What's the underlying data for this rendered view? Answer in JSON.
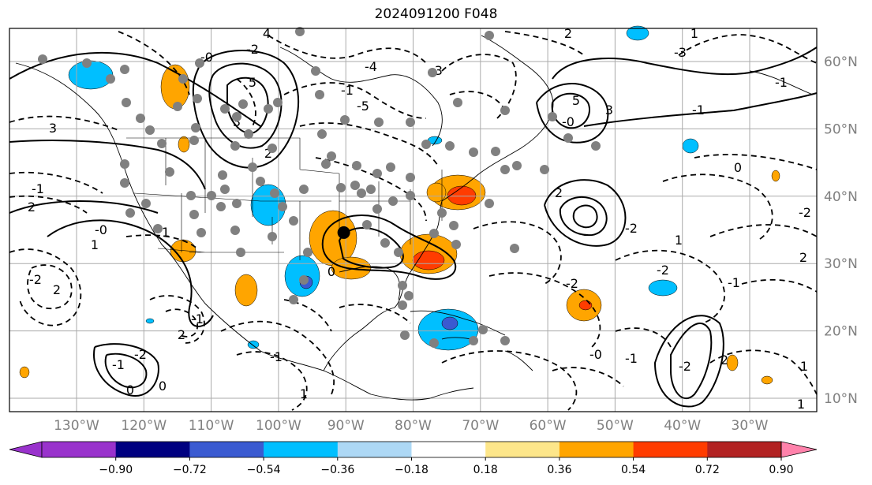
{
  "title": "2024091200 F048",
  "lat_labels": [
    "60°N",
    "50°N",
    "40°N",
    "30°N",
    "20°N",
    "10°N"
  ],
  "lon_labels": [
    "130°W",
    "120°W",
    "110°W",
    "100°W",
    "90°W",
    "80°W",
    "70°W",
    "60°W",
    "50°W",
    "40°W",
    "30°W"
  ],
  "colorbar": {
    "ticks": [
      "−0.90",
      "−0.72",
      "−0.54",
      "−0.36",
      "−0.18",
      "0.18",
      "0.36",
      "0.54",
      "0.72",
      "0.90"
    ],
    "under_color": "#9932cc",
    "colors": [
      "#9932cc",
      "#000080",
      "#3a5ad1",
      "#00bfff",
      "#add8f5",
      "#ffffff",
      "#fde68a",
      "#ffa500",
      "#ff3c00",
      "#b22222",
      "#ff82ab"
    ],
    "over_color": "#ff82ab"
  },
  "contour_labels": [
    "4",
    "-0",
    "-2",
    "5",
    "3",
    "2",
    "1",
    "-1",
    "0",
    "-4",
    "-3",
    "-5",
    "2",
    "1",
    "-3",
    "5",
    "3",
    "2",
    "-0",
    "-1",
    "-2",
    "0",
    "-1",
    "-2",
    "1",
    "-2",
    "-2",
    "2",
    "-2",
    "-1",
    "0",
    "-0",
    "1",
    "2",
    "3",
    "-1",
    "2",
    "-2",
    "-1",
    "1",
    "0",
    "-1",
    "2",
    "1",
    "-0",
    "-1",
    "-2",
    "2",
    "-1",
    "1"
  ],
  "marked_location": {
    "lat": 34.6,
    "lon": -90.3
  },
  "colors": {
    "map_frame": "#000000",
    "grid": "#aaaaaa",
    "axis_text": "#808080"
  }
}
